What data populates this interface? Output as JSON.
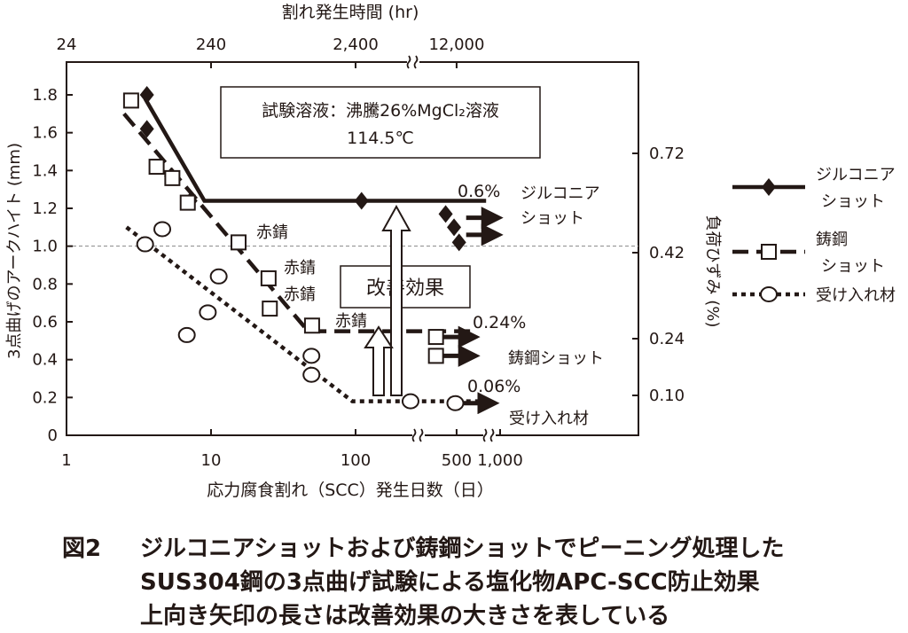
{
  "chart_data": {
    "type": "scatter",
    "title": "",
    "xlabel": "応力腐食割れ（SCC）発生日数（日）",
    "ylabel": "3点曲げのアークハイト (mm)",
    "ylabel_right": "負荷ひずみ (%)",
    "xlabel_top": "割れ発生時間 (hr)",
    "x_scale": "log",
    "xlim": [
      1,
      1000
    ],
    "ylim": [
      0,
      1.8
    ],
    "x_ticks": [
      "1",
      "10",
      "100",
      "500",
      "1,000"
    ],
    "y_ticks": [
      "0",
      "0.2",
      "0.4",
      "0.6",
      "0.8",
      "1.0",
      "1.2",
      "1.4",
      "1.6",
      "1.8"
    ],
    "top_ticks": [
      "24",
      "240",
      "2,400",
      "12,000"
    ],
    "right_ticks": [
      "0.10",
      "0.24",
      "0.42",
      "0.72"
    ],
    "grid": false,
    "reference_line_y": 1.0,
    "legend_position": "right",
    "series": [
      {
        "name": "ジルコニア ショット",
        "marker": "filled-diamond",
        "line_style": "solid",
        "points": [
          [
            3.6,
            1.8
          ],
          [
            3.6,
            1.62
          ],
          [
            5.3,
            1.37
          ],
          [
            7.2,
            1.24
          ],
          [
            110,
            1.24
          ],
          [
            420,
            1.17
          ],
          [
            480,
            1.1
          ],
          [
            520,
            1.02
          ]
        ],
        "arrow_points": [
          [
            520,
            1.15
          ],
          [
            520,
            1.06
          ]
        ],
        "trend": [
          [
            3.5,
            1.78
          ],
          [
            9,
            1.24
          ],
          [
            800,
            1.24
          ]
        ],
        "strain_label": "0.6%",
        "right_label": "ジルコニア ショット"
      },
      {
        "name": "鋳鋼 ショット",
        "marker": "open-square",
        "line_style": "dashed",
        "points": [
          [
            2.8,
            1.77
          ],
          [
            4.2,
            1.42
          ],
          [
            5.4,
            1.36
          ],
          [
            6.9,
            1.23
          ],
          [
            15.5,
            1.02
          ],
          [
            25,
            0.83
          ],
          [
            25.5,
            0.67
          ],
          [
            50,
            0.58
          ],
          [
            360,
            0.52
          ],
          [
            360,
            0.42
          ]
        ],
        "arrow_points": [
          [
            360,
            0.52
          ],
          [
            360,
            0.42
          ]
        ],
        "trend": [
          [
            2.5,
            1.7
          ],
          [
            47,
            0.55
          ],
          [
            650,
            0.55
          ]
        ],
        "strain_label": "0.24%",
        "right_label": "鋳鋼ショット"
      },
      {
        "name": "受け入れ材",
        "marker": "open-circle",
        "line_style": "dotted",
        "points": [
          [
            3.5,
            1.01
          ],
          [
            4.6,
            1.09
          ],
          [
            6.8,
            0.53
          ],
          [
            9.5,
            0.65
          ],
          [
            11.3,
            0.84
          ],
          [
            49.5,
            0.42
          ],
          [
            49.5,
            0.32
          ],
          [
            240,
            0.18
          ],
          [
            490,
            0.17
          ]
        ],
        "arrow_points": [
          [
            490,
            0.17
          ]
        ],
        "trend": [
          [
            2.6,
            1.1
          ],
          [
            95,
            0.18
          ],
          [
            700,
            0.18
          ]
        ],
        "strain_label": "0.06%",
        "right_label": "受け入れ材"
      }
    ],
    "annotations": {
      "test_solution_line1": "試験溶液：沸騰26%MgCl₂溶液",
      "test_solution_line2": "114.5℃",
      "improvement_effect": "改善効果",
      "rust_labels": [
        "赤錆",
        "赤錆",
        "赤錆",
        "赤錆"
      ]
    },
    "legend": [
      {
        "label_line1": "ジルコニア",
        "label_line2": "ショット",
        "marker": "filled-diamond",
        "line_style": "solid"
      },
      {
        "label_line1": "鋳鋼",
        "label_line2": "ショット",
        "marker": "open-square",
        "line_style": "dashed"
      },
      {
        "label_line1": "受け入れ材",
        "label_line2": "",
        "marker": "open-circle",
        "line_style": "dotted"
      }
    ]
  },
  "caption": {
    "label": "図2",
    "line1": "ジルコニアショットおよび鋳鋼ショットでピーニング処理した",
    "line2": "SUS304鋼の3点曲げ試験による塩化物APC-SCC防止効果",
    "line3": "上向き矢印の長さは改善効果の大きさを表している"
  },
  "colors": {
    "ink": "#231815",
    "background": "#ffffff",
    "reference_line": "#888888"
  }
}
